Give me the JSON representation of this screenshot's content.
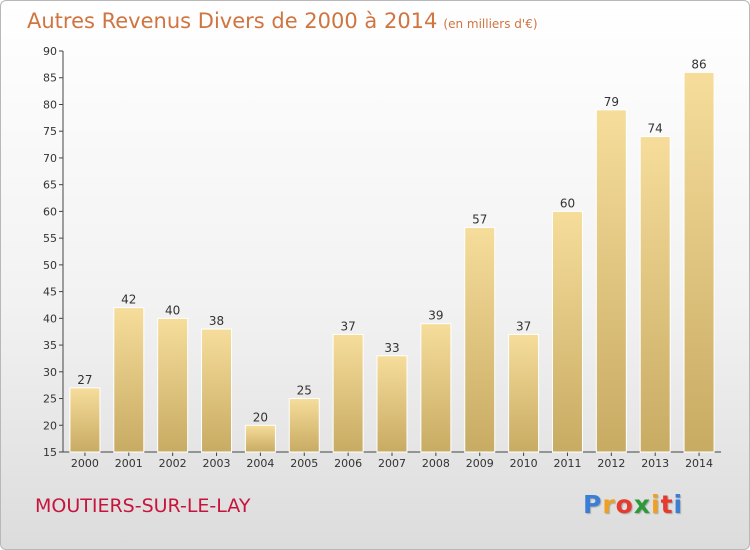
{
  "header": {
    "title": "Autres Revenus Divers de 2000 à 2014",
    "unit": "(en milliers d'€)"
  },
  "footer": {
    "location": "MOUTIERS-SUR-LE-LAY",
    "logo_letters": [
      "P",
      "r",
      "o",
      "x",
      "i",
      "t",
      "i"
    ],
    "logo_colors": [
      "#3a7fd5",
      "#f0a020",
      "#e63a2e",
      "#2a9a3a",
      "#f0a020",
      "#e63a2e",
      "#3a7fd5"
    ]
  },
  "colors": {
    "bar_top": "#f6dd9b",
    "bar_bottom": "#c8ab63",
    "title": "#d07440",
    "location": "#c8143c"
  },
  "chart_data": {
    "type": "bar",
    "title": "Autres Revenus Divers de 2000 à 2014",
    "subtitle": "(en milliers d'€)",
    "xlabel": "",
    "ylabel": "",
    "categories": [
      "2000",
      "2001",
      "2002",
      "2003",
      "2004",
      "2005",
      "2006",
      "2007",
      "2008",
      "2009",
      "2010",
      "2011",
      "2012",
      "2013",
      "2014"
    ],
    "values": [
      27,
      42,
      40,
      38,
      20,
      25,
      37,
      33,
      39,
      57,
      37,
      60,
      79,
      74,
      86
    ],
    "ylim": [
      15,
      90
    ],
    "yticks": [
      15,
      20,
      25,
      30,
      35,
      40,
      45,
      50,
      55,
      60,
      65,
      70,
      75,
      80,
      85,
      90
    ],
    "grid": false,
    "data_labels": true,
    "legend": "none"
  }
}
